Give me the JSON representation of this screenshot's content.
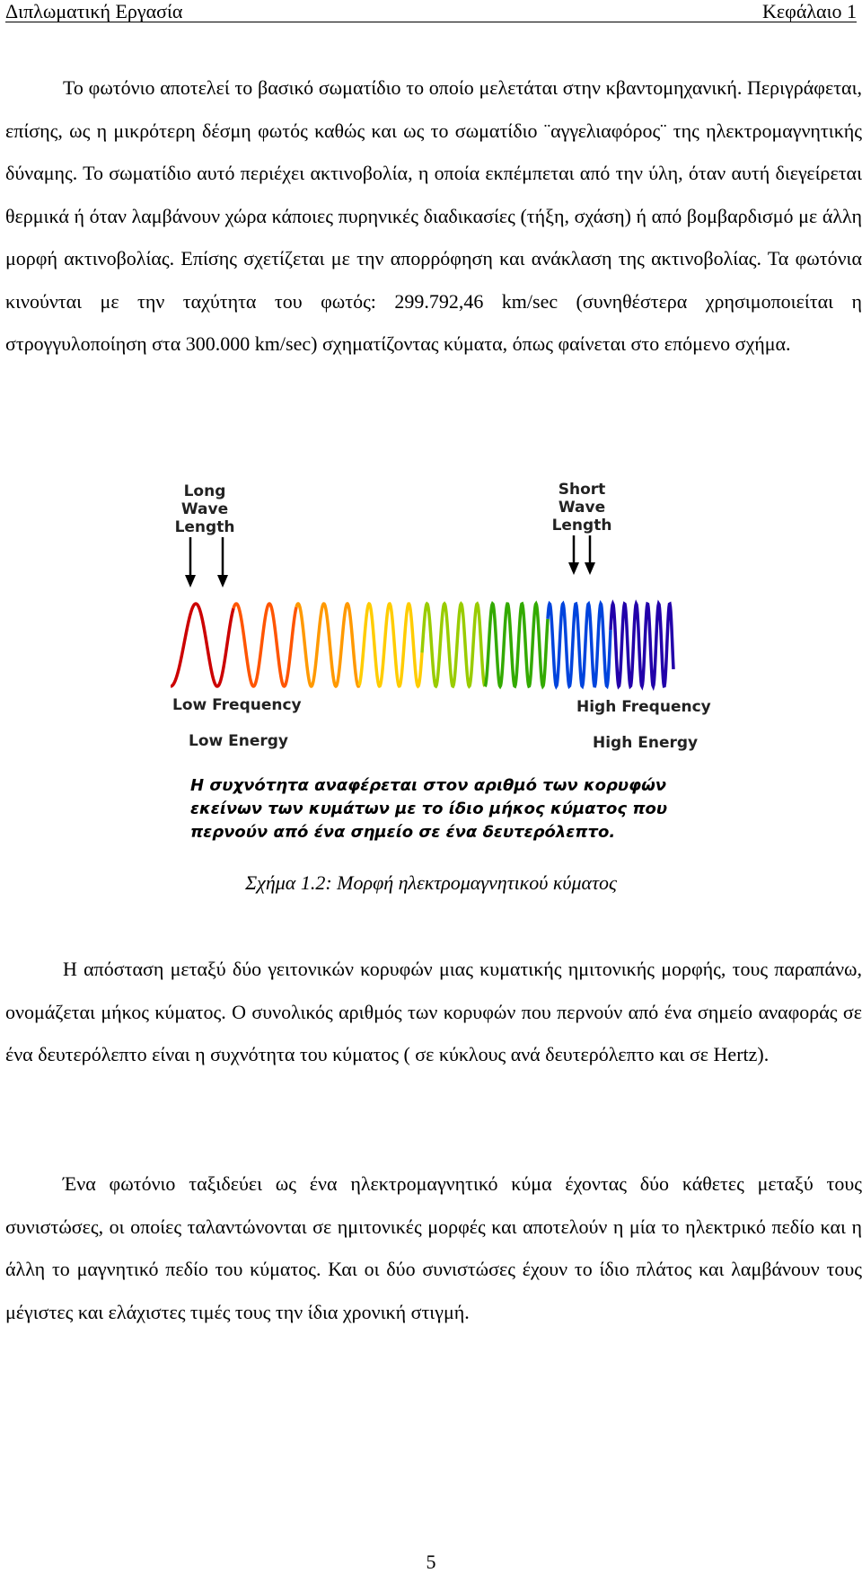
{
  "header": {
    "left": "Διπλωματική Εργασία",
    "right": "Κεφάλαιο 1"
  },
  "paragraphs": [
    "Το φωτόνιο αποτελεί το βασικό σωματίδιο το οποίο μελετάται στην κβαντομηχανική. Περιγράφεται, επίσης, ως η μικρότερη δέσμη φωτός καθώς και ως το σωματίδιο ¨αγγελιαφόρος¨ της ηλεκτρομαγνητικής δύναμης. Το σωματίδιο αυτό περιέχει ακτινοβολία, η οποία εκπέμπεται από την ύλη, όταν αυτή διεγείρεται θερμικά ή όταν λαμβάνουν χώρα κάποιες πυρηνικές διαδικασίες (τήξη, σχάση) ή από βομβαρδισμό με άλλη μορφή ακτινοβολίας. Επίσης σχετίζεται με την απορρόφηση και ανάκλαση της ακτινοβολίας. Τα φωτόνια κινούνται με την ταχύτητα του φωτός: 299.792,46 km/sec (συνηθέστερα χρησιμοποιείται η στρογγυλοποίηση στα 300.000 km/sec) σχηματίζοντας κύματα, όπως φαίνεται στο επόμενο σχήμα.",
    "Η απόσταση μεταξύ δύο γειτονικών κορυφών μιας κυματικής ημιτονικής μορφής, τους παραπάνω, ονομάζεται μήκος κύματος. Ο συνολικός αριθμός των κορυφών που περνούν από ένα σημείο αναφοράς σε ένα δευτερόλεπτο είναι η συχνότητα του κύματος ( σε κύκλους ανά δευτερόλεπτο και σε Hertz).",
    "Ένα φωτόνιο ταξιδεύει ως ένα ηλεκτρομαγνητικό κύμα έχοντας δύο κάθετες μεταξύ τους συνιστώσες, οι οποίες ταλαντώνονται σε ημιτονικές μορφές και αποτελούν η μία το ηλεκτρικό πεδίο και η άλλη το μαγνητικό πεδίο του κύματος. Και οι δύο συνιστώσες έχουν το ίδιο πλάτος και λαμβάνουν τους μέγιστες και ελάχιστες τιμές τους την ίδια χρονική στιγμή."
  ],
  "figure": {
    "long_label": [
      "Long",
      "Wave",
      "Length"
    ],
    "short_label": [
      "Short",
      "Wave",
      "Length"
    ],
    "low_frequency": "Low Frequency",
    "low_energy": "Low Energy",
    "high_frequency": "High Frequency",
    "high_energy": "High Energy",
    "greek_text": [
      "Η συχνότητα αναφέρεται στον αριθμό των κορυφών",
      "εκείνων των κυμάτων με το ίδιο μήκος κύματος που",
      "περνούν από ένα σημείο σε ένα δευτερόλεπτο."
    ],
    "wave_colors": [
      "#cc0000",
      "#ff5500",
      "#ff9900",
      "#ffcc00",
      "#99cc00",
      "#33aa00",
      "#0044dd",
      "#2200aa"
    ],
    "caption": "Σχήμα 1.2: Μορφή ηλεκτρομαγνητικού κύματος"
  },
  "page_number": "5"
}
